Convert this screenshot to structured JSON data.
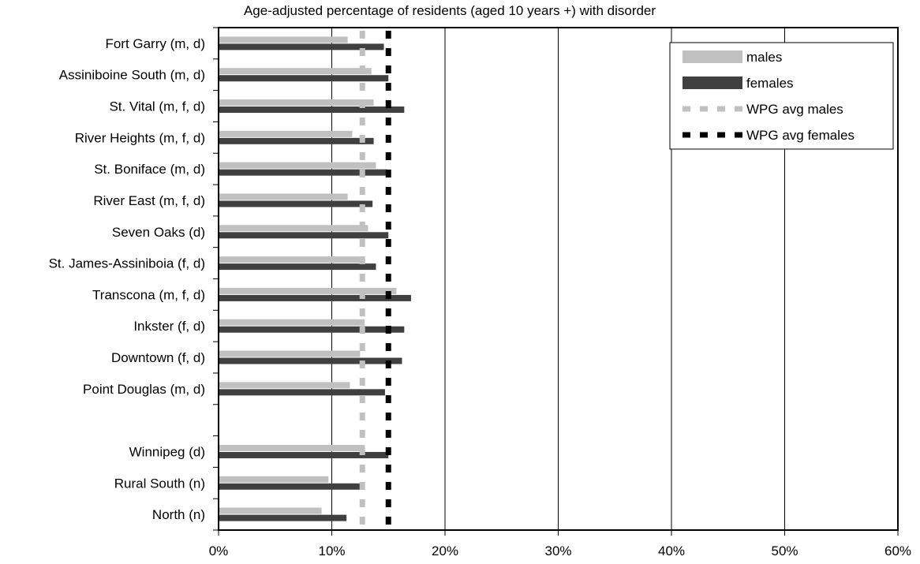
{
  "chart_data": {
    "type": "bar",
    "orientation": "horizontal",
    "title": "Age-adjusted percentage of residents (aged 10 years +) with disorder",
    "categories": [
      "Fort Garry (m, d)",
      "Assiniboine South (m, d)",
      "St. Vital (m, f, d)",
      "River Heights (m, f, d)",
      "St. Boniface (m, d)",
      "River East (m, f, d)",
      "Seven Oaks (d)",
      "St. James-Assiniboia (f, d)",
      "Transcona (m, f, d)",
      "Inkster (f, d)",
      "Downtown (f, d)",
      "Point Douglas (m, d)",
      "",
      "Winnipeg (d)",
      "Rural South (n)",
      "North (n)"
    ],
    "series": [
      {
        "name": "males",
        "color": "#c0c0c0",
        "values": [
          11.4,
          13.5,
          13.7,
          11.8,
          13.9,
          11.4,
          13.2,
          12.9,
          15.7,
          12.9,
          12.5,
          11.6,
          null,
          12.9,
          9.7,
          9.1
        ]
      },
      {
        "name": "females",
        "color": "#404040",
        "values": [
          14.6,
          15.0,
          16.4,
          13.7,
          14.9,
          13.6,
          15.0,
          13.9,
          17.0,
          16.4,
          16.2,
          14.7,
          null,
          15.0,
          12.6,
          11.3
        ]
      }
    ],
    "reference_lines": [
      {
        "name": "WPG avg males",
        "value": 12.7,
        "color": "#c0c0c0",
        "style": "dashed"
      },
      {
        "name": "WPG avg females",
        "value": 15.0,
        "color": "#000000",
        "style": "dashed"
      }
    ],
    "xlim": [
      0,
      60
    ],
    "xticks": [
      "0%",
      "10%",
      "20%",
      "30%",
      "40%",
      "50%",
      "60%"
    ],
    "grid": true,
    "legend_position": "top-right"
  }
}
